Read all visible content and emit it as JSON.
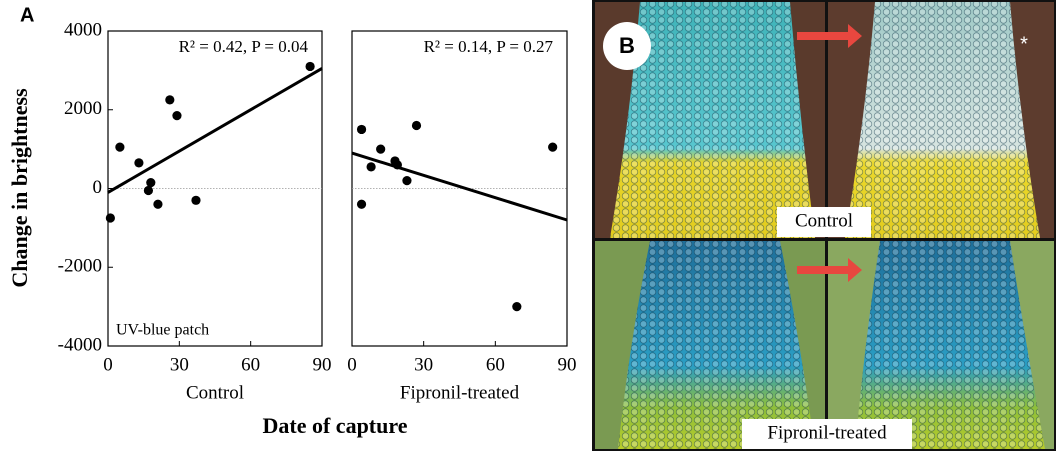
{
  "figure": {
    "panel_a_label": "A",
    "ylabel": "Change in brightness",
    "xlabel": "Date of capture"
  },
  "chart_data": [
    {
      "type": "scatter",
      "xlabel": "Control",
      "annotation": "R² = 0.42, P = 0.04",
      "inset_label": "UV-blue patch",
      "x": [
        1,
        5,
        13,
        17,
        18,
        21,
        26,
        29,
        37,
        85
      ],
      "y": [
        -750,
        1050,
        650,
        -50,
        150,
        -400,
        2250,
        1850,
        -300,
        3100
      ],
      "color": "#000000",
      "xlim": [
        0,
        90
      ],
      "xticks": [
        0,
        30,
        60,
        90
      ],
      "ylim": [
        -4000,
        4000
      ],
      "yticks": [
        -4000,
        -2000,
        0,
        2000,
        4000
      ],
      "trendline": {
        "x": [
          0,
          90
        ],
        "y": [
          -100,
          3050
        ]
      },
      "reference_line": 0
    },
    {
      "type": "scatter",
      "xlabel": "Fipronil-treated",
      "annotation": "R² = 0.14, P = 0.27",
      "x": [
        4,
        4,
        8,
        12,
        18,
        19,
        23,
        27,
        69,
        84
      ],
      "y": [
        1500,
        -400,
        550,
        1000,
        700,
        600,
        200,
        1600,
        -3000,
        1050
      ],
      "color": "#000000",
      "xlim": [
        0,
        90
      ],
      "xticks": [
        0,
        30,
        60,
        90
      ],
      "ylim": [
        -4000,
        4000
      ],
      "trendline": {
        "x": [
          0,
          90
        ],
        "y": [
          900,
          -800
        ]
      },
      "reference_line": 0
    }
  ],
  "panel_b": {
    "label": "B",
    "top_caption": "Control",
    "bottom_caption": "Fipronil-treated",
    "marker": "*"
  }
}
